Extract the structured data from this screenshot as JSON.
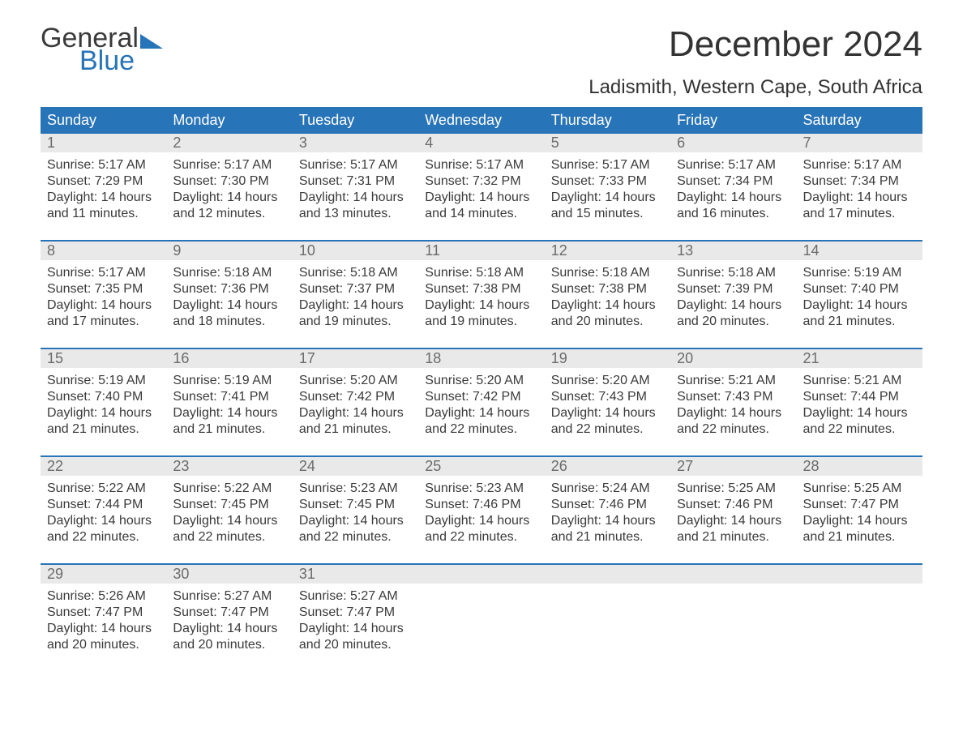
{
  "logo": {
    "top": "General",
    "bottom": "Blue"
  },
  "title": "December 2024",
  "location": "Ladismith, Western Cape, South Africa",
  "colors": {
    "header_bg": "#2874b8",
    "header_text": "#ffffff",
    "daynum_bg": "#e9e9e9",
    "daynum_text": "#6b6b6b",
    "body_text": "#3a3a3a",
    "logo_blue": "#2874b8"
  },
  "day_headers": [
    "Sunday",
    "Monday",
    "Tuesday",
    "Wednesday",
    "Thursday",
    "Friday",
    "Saturday"
  ],
  "weeks": [
    [
      {
        "n": "1",
        "sr": "Sunrise: 5:17 AM",
        "ss": "Sunset: 7:29 PM",
        "d1": "Daylight: 14 hours",
        "d2": "and 11 minutes."
      },
      {
        "n": "2",
        "sr": "Sunrise: 5:17 AM",
        "ss": "Sunset: 7:30 PM",
        "d1": "Daylight: 14 hours",
        "d2": "and 12 minutes."
      },
      {
        "n": "3",
        "sr": "Sunrise: 5:17 AM",
        "ss": "Sunset: 7:31 PM",
        "d1": "Daylight: 14 hours",
        "d2": "and 13 minutes."
      },
      {
        "n": "4",
        "sr": "Sunrise: 5:17 AM",
        "ss": "Sunset: 7:32 PM",
        "d1": "Daylight: 14 hours",
        "d2": "and 14 minutes."
      },
      {
        "n": "5",
        "sr": "Sunrise: 5:17 AM",
        "ss": "Sunset: 7:33 PM",
        "d1": "Daylight: 14 hours",
        "d2": "and 15 minutes."
      },
      {
        "n": "6",
        "sr": "Sunrise: 5:17 AM",
        "ss": "Sunset: 7:34 PM",
        "d1": "Daylight: 14 hours",
        "d2": "and 16 minutes."
      },
      {
        "n": "7",
        "sr": "Sunrise: 5:17 AM",
        "ss": "Sunset: 7:34 PM",
        "d1": "Daylight: 14 hours",
        "d2": "and 17 minutes."
      }
    ],
    [
      {
        "n": "8",
        "sr": "Sunrise: 5:17 AM",
        "ss": "Sunset: 7:35 PM",
        "d1": "Daylight: 14 hours",
        "d2": "and 17 minutes."
      },
      {
        "n": "9",
        "sr": "Sunrise: 5:18 AM",
        "ss": "Sunset: 7:36 PM",
        "d1": "Daylight: 14 hours",
        "d2": "and 18 minutes."
      },
      {
        "n": "10",
        "sr": "Sunrise: 5:18 AM",
        "ss": "Sunset: 7:37 PM",
        "d1": "Daylight: 14 hours",
        "d2": "and 19 minutes."
      },
      {
        "n": "11",
        "sr": "Sunrise: 5:18 AM",
        "ss": "Sunset: 7:38 PM",
        "d1": "Daylight: 14 hours",
        "d2": "and 19 minutes."
      },
      {
        "n": "12",
        "sr": "Sunrise: 5:18 AM",
        "ss": "Sunset: 7:38 PM",
        "d1": "Daylight: 14 hours",
        "d2": "and 20 minutes."
      },
      {
        "n": "13",
        "sr": "Sunrise: 5:18 AM",
        "ss": "Sunset: 7:39 PM",
        "d1": "Daylight: 14 hours",
        "d2": "and 20 minutes."
      },
      {
        "n": "14",
        "sr": "Sunrise: 5:19 AM",
        "ss": "Sunset: 7:40 PM",
        "d1": "Daylight: 14 hours",
        "d2": "and 21 minutes."
      }
    ],
    [
      {
        "n": "15",
        "sr": "Sunrise: 5:19 AM",
        "ss": "Sunset: 7:40 PM",
        "d1": "Daylight: 14 hours",
        "d2": "and 21 minutes."
      },
      {
        "n": "16",
        "sr": "Sunrise: 5:19 AM",
        "ss": "Sunset: 7:41 PM",
        "d1": "Daylight: 14 hours",
        "d2": "and 21 minutes."
      },
      {
        "n": "17",
        "sr": "Sunrise: 5:20 AM",
        "ss": "Sunset: 7:42 PM",
        "d1": "Daylight: 14 hours",
        "d2": "and 21 minutes."
      },
      {
        "n": "18",
        "sr": "Sunrise: 5:20 AM",
        "ss": "Sunset: 7:42 PM",
        "d1": "Daylight: 14 hours",
        "d2": "and 22 minutes."
      },
      {
        "n": "19",
        "sr": "Sunrise: 5:20 AM",
        "ss": "Sunset: 7:43 PM",
        "d1": "Daylight: 14 hours",
        "d2": "and 22 minutes."
      },
      {
        "n": "20",
        "sr": "Sunrise: 5:21 AM",
        "ss": "Sunset: 7:43 PM",
        "d1": "Daylight: 14 hours",
        "d2": "and 22 minutes."
      },
      {
        "n": "21",
        "sr": "Sunrise: 5:21 AM",
        "ss": "Sunset: 7:44 PM",
        "d1": "Daylight: 14 hours",
        "d2": "and 22 minutes."
      }
    ],
    [
      {
        "n": "22",
        "sr": "Sunrise: 5:22 AM",
        "ss": "Sunset: 7:44 PM",
        "d1": "Daylight: 14 hours",
        "d2": "and 22 minutes."
      },
      {
        "n": "23",
        "sr": "Sunrise: 5:22 AM",
        "ss": "Sunset: 7:45 PM",
        "d1": "Daylight: 14 hours",
        "d2": "and 22 minutes."
      },
      {
        "n": "24",
        "sr": "Sunrise: 5:23 AM",
        "ss": "Sunset: 7:45 PM",
        "d1": "Daylight: 14 hours",
        "d2": "and 22 minutes."
      },
      {
        "n": "25",
        "sr": "Sunrise: 5:23 AM",
        "ss": "Sunset: 7:46 PM",
        "d1": "Daylight: 14 hours",
        "d2": "and 22 minutes."
      },
      {
        "n": "26",
        "sr": "Sunrise: 5:24 AM",
        "ss": "Sunset: 7:46 PM",
        "d1": "Daylight: 14 hours",
        "d2": "and 21 minutes."
      },
      {
        "n": "27",
        "sr": "Sunrise: 5:25 AM",
        "ss": "Sunset: 7:46 PM",
        "d1": "Daylight: 14 hours",
        "d2": "and 21 minutes."
      },
      {
        "n": "28",
        "sr": "Sunrise: 5:25 AM",
        "ss": "Sunset: 7:47 PM",
        "d1": "Daylight: 14 hours",
        "d2": "and 21 minutes."
      }
    ],
    [
      {
        "n": "29",
        "sr": "Sunrise: 5:26 AM",
        "ss": "Sunset: 7:47 PM",
        "d1": "Daylight: 14 hours",
        "d2": "and 20 minutes."
      },
      {
        "n": "30",
        "sr": "Sunrise: 5:27 AM",
        "ss": "Sunset: 7:47 PM",
        "d1": "Daylight: 14 hours",
        "d2": "and 20 minutes."
      },
      {
        "n": "31",
        "sr": "Sunrise: 5:27 AM",
        "ss": "Sunset: 7:47 PM",
        "d1": "Daylight: 14 hours",
        "d2": "and 20 minutes."
      },
      {
        "empty": true
      },
      {
        "empty": true
      },
      {
        "empty": true
      },
      {
        "empty": true
      }
    ]
  ]
}
